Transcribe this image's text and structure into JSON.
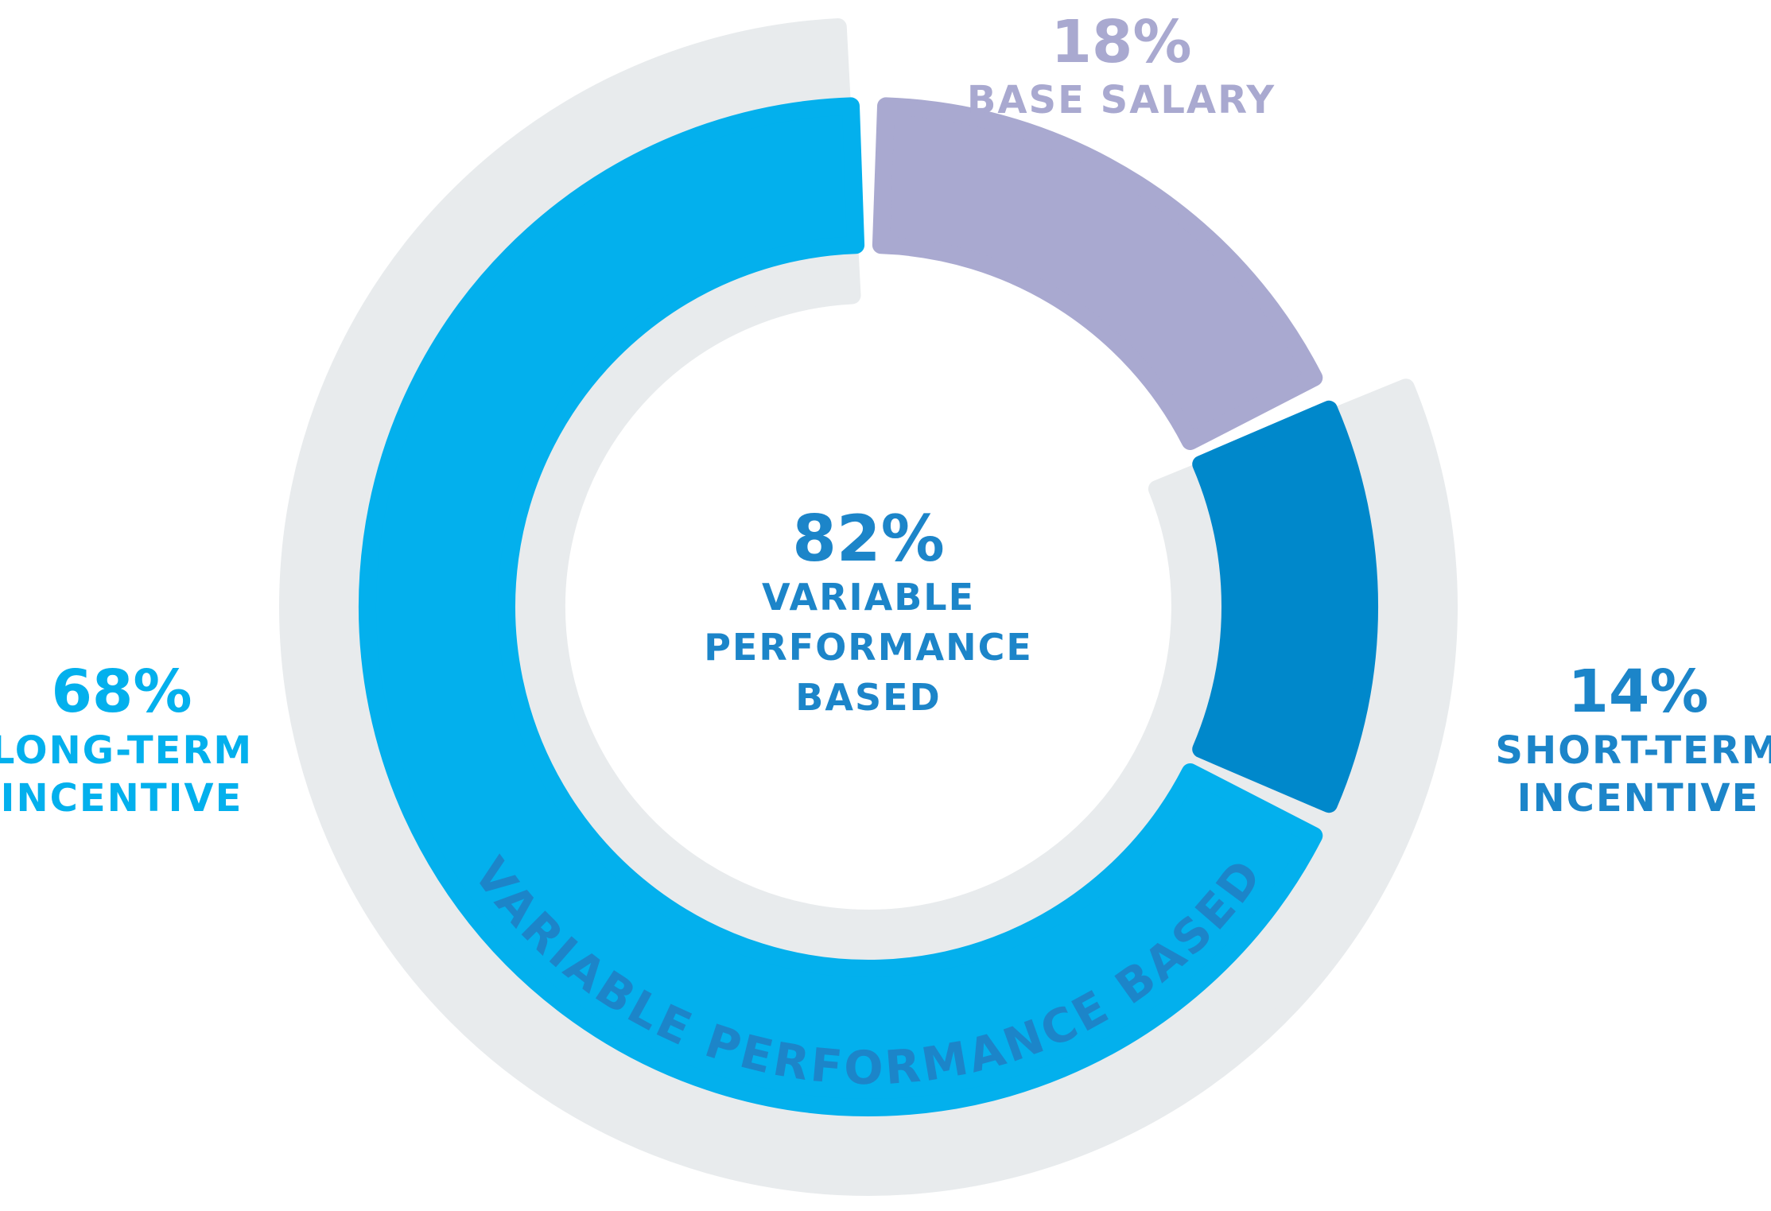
{
  "chart_data": {
    "type": "pie",
    "style": "nested-donut",
    "outer_ring": {
      "name": "VARIABLE PERFORMANCE BASED",
      "value": 82,
      "color": "#e8ebed",
      "label_color": "#1c85c9"
    },
    "segments": [
      {
        "label": "BASE SALARY",
        "value": 18,
        "display": "18%",
        "color": "#a9a9d0",
        "label_color": "#a9a9d0"
      },
      {
        "label": "SHORT-TERM INCENTIVE",
        "value": 14,
        "display": "14%",
        "color": "#0088cb",
        "label_color": "#1c85c9"
      },
      {
        "label": "LONG-TERM INCENTIVE",
        "value": 68,
        "display": "68%",
        "color": "#03b0ed",
        "label_color": "#03b0ed"
      }
    ],
    "center": {
      "value": "82%",
      "label_lines": [
        "VARIABLE",
        "PERFORMANCE",
        "BASED"
      ],
      "color": "#1c85c9"
    }
  }
}
